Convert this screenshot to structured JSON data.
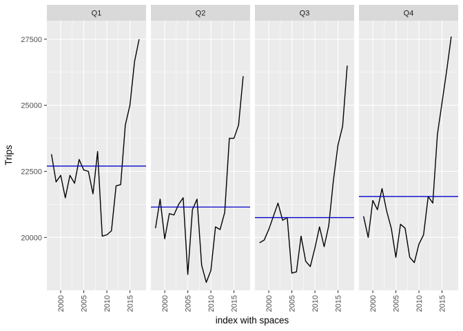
{
  "chart_data": {
    "type": "line",
    "facet_labels": [
      "Q1",
      "Q2",
      "Q3",
      "Q4"
    ],
    "xlabel": "index with spaces",
    "ylabel": "Trips",
    "xlim": [
      1997,
      2018.5
    ],
    "ylim": [
      18000,
      28200
    ],
    "x_ticks": [
      2000,
      2005,
      2010,
      2015
    ],
    "y_ticks": [
      20000,
      22500,
      25000,
      27500
    ],
    "y_tick_labels": [
      "20000",
      "22500",
      "25000",
      "27500"
    ],
    "grid": true,
    "line_color": "#000000",
    "mean_line_color": "#0000cc",
    "panel_color": "#ebebeb",
    "strip_color": "#d9d9d9",
    "x": [
      1998,
      1999,
      2000,
      2001,
      2002,
      2003,
      2004,
      2005,
      2006,
      2007,
      2008,
      2009,
      2010,
      2011,
      2012,
      2013,
      2014,
      2015,
      2016,
      2017
    ],
    "series": [
      {
        "facet": "Q1",
        "values": [
          23150,
          22100,
          22350,
          21500,
          22350,
          22050,
          22950,
          22550,
          22500,
          21650,
          23250,
          20050,
          20100,
          20250,
          21950,
          22000,
          24250,
          25000,
          26650,
          27500
        ],
        "mean": 22700
      },
      {
        "facet": "Q2",
        "values": [
          20350,
          21450,
          19950,
          20900,
          20850,
          21250,
          21500,
          18600,
          21050,
          21450,
          18950,
          18300,
          18750,
          20400,
          20300,
          20950,
          23750,
          23750,
          24250,
          26100
        ],
        "mean": 21150
      },
      {
        "facet": "Q3",
        "values": [
          19800,
          19900,
          20300,
          20800,
          21300,
          20650,
          20750,
          18650,
          18700,
          20050,
          19100,
          18900,
          19600,
          20400,
          19650,
          20450,
          22150,
          23500,
          24200,
          26500
        ],
        "mean": 20750
      },
      {
        "facet": "Q4",
        "values": [
          20800,
          20000,
          21400,
          21050,
          21850,
          21000,
          20350,
          19250,
          20500,
          20350,
          19250,
          19050,
          19750,
          20100,
          21550,
          21300,
          23900,
          25100,
          26300,
          27600
        ],
        "mean": 21550
      }
    ]
  }
}
